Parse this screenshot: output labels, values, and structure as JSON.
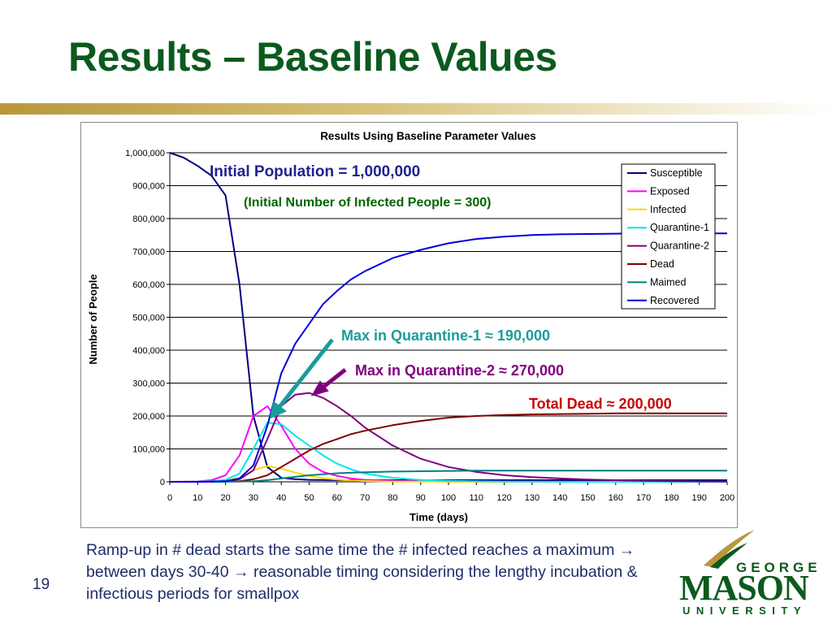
{
  "slide": {
    "title": "Results – Baseline Values",
    "body_text": "Ramp-up in # dead starts the same time the # infected reaches a maximum → between days 30-40 → reasonable timing considering the lengthy incubation & infectious periods for smallpox",
    "page_number": "19"
  },
  "logo": {
    "line1": "GEORGE",
    "line2": "MASON",
    "line3": "UNIVERSITY",
    "colors": {
      "green": "#0b5a1e",
      "gold": "#b9973a"
    }
  },
  "chart_data": {
    "type": "line",
    "title": "Results Using Baseline Parameter Values",
    "xlabel": "Time (days)",
    "ylabel": "Number of People",
    "xlim": [
      0,
      200
    ],
    "ylim": [
      0,
      1000000
    ],
    "x_ticks": [
      "0",
      "10",
      "20",
      "30",
      "40",
      "50",
      "60",
      "70",
      "80",
      "90",
      "100",
      "110",
      "120",
      "130",
      "140",
      "150",
      "160",
      "170",
      "180",
      "190",
      "200"
    ],
    "y_ticks": [
      "0",
      "100,000",
      "200,000",
      "300,000",
      "400,000",
      "500,000",
      "600,000",
      "700,000",
      "800,000",
      "900,000",
      "1,000,000"
    ],
    "grid": "horizontal",
    "legend_position": "top-right",
    "x": [
      0,
      5,
      10,
      15,
      20,
      25,
      30,
      35,
      40,
      45,
      50,
      55,
      60,
      65,
      70,
      80,
      90,
      100,
      110,
      120,
      130,
      140,
      150,
      160,
      170,
      180,
      190,
      200
    ],
    "series": [
      {
        "name": "Susceptible",
        "color": "#000080",
        "values": [
          1000000,
          985000,
          960000,
          930000,
          870000,
          600000,
          200000,
          45000,
          12000,
          8000,
          6000,
          5500,
          5000,
          5000,
          5000,
          5000,
          5000,
          5000,
          5000,
          5000,
          5000,
          5000,
          5000,
          5000,
          5000,
          5000,
          5000,
          5000
        ]
      },
      {
        "name": "Exposed",
        "color": "#ff00ff",
        "values": [
          0,
          500,
          1500,
          5000,
          20000,
          80000,
          200000,
          230000,
          170000,
          100000,
          55000,
          30000,
          18000,
          10000,
          6000,
          3000,
          1500,
          800,
          400,
          200,
          100,
          50,
          0,
          0,
          0,
          0,
          0,
          0
        ]
      },
      {
        "name": "Infected",
        "color": "#ffd800",
        "values": [
          300,
          300,
          500,
          1000,
          3000,
          12000,
          35000,
          48000,
          40000,
          28000,
          18000,
          11000,
          7000,
          4000,
          2500,
          1000,
          500,
          200,
          100,
          50,
          0,
          0,
          0,
          0,
          0,
          0,
          0,
          0
        ]
      },
      {
        "name": "Quarantine-1",
        "color": "#00e5ee",
        "values": [
          0,
          0,
          500,
          2000,
          6000,
          25000,
          100000,
          180000,
          175000,
          140000,
          110000,
          80000,
          55000,
          38000,
          25000,
          12000,
          6000,
          3000,
          1500,
          800,
          400,
          200,
          100,
          0,
          0,
          0,
          0,
          0
        ]
      },
      {
        "name": "Quarantine-2",
        "color": "#800080",
        "values": [
          0,
          0,
          0,
          500,
          2000,
          8000,
          35000,
          130000,
          230000,
          265000,
          270000,
          255000,
          230000,
          200000,
          165000,
          110000,
          70000,
          45000,
          30000,
          20000,
          14000,
          10000,
          7000,
          5000,
          3000,
          2000,
          1000,
          500
        ]
      },
      {
        "name": "Dead",
        "color": "#800000",
        "values": [
          0,
          0,
          0,
          0,
          500,
          2000,
          8000,
          20000,
          45000,
          70000,
          95000,
          115000,
          130000,
          145000,
          155000,
          172000,
          185000,
          195000,
          200000,
          203000,
          205000,
          206000,
          207000,
          208000,
          208000,
          208000,
          208000,
          208000
        ]
      },
      {
        "name": "Maimed",
        "color": "#008080",
        "values": [
          0,
          0,
          0,
          0,
          0,
          500,
          2000,
          5000,
          10000,
          15000,
          20000,
          23000,
          26000,
          28000,
          29000,
          31000,
          32000,
          33000,
          34000,
          34000,
          34000,
          34000,
          34000,
          34000,
          34000,
          34000,
          34000,
          34000
        ]
      },
      {
        "name": "Recovered",
        "color": "#0000dd",
        "values": [
          0,
          0,
          0,
          500,
          2000,
          10000,
          50000,
          170000,
          330000,
          420000,
          480000,
          540000,
          580000,
          615000,
          640000,
          680000,
          705000,
          725000,
          738000,
          745000,
          750000,
          752000,
          753000,
          754000,
          755000,
          755000,
          755000,
          755000
        ]
      }
    ],
    "annotations": [
      {
        "id": "initial_population",
        "text": "Initial Population = 1,000,000",
        "color": "#1f2390"
      },
      {
        "id": "initial_infected",
        "text": "(Initial Number of Infected People = 300)",
        "color": "#006600"
      },
      {
        "id": "max_q1",
        "text": "Max in Quarantine-1 ≈ 190,000",
        "color": "#1a9c9c"
      },
      {
        "id": "max_q2",
        "text": "Max in Quarantine-2 ≈ 270,000",
        "color": "#800080"
      },
      {
        "id": "total_dead",
        "text": "Total Dead ≈ 200,000",
        "color": "#cc0000"
      }
    ]
  }
}
